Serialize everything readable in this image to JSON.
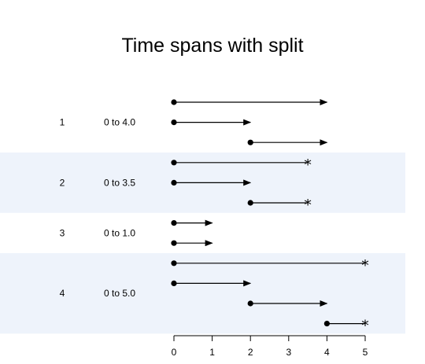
{
  "chart_data": {
    "type": "timeline",
    "title": "Time spans with split",
    "xlabel": "",
    "ylabel": "",
    "xlim": [
      0,
      5
    ],
    "x_ticks": [
      0,
      1,
      2,
      3,
      4,
      5
    ],
    "shade_color": "#eef3fb",
    "line_color": "#000000",
    "groups": [
      {
        "id": "1",
        "range": "0 to 4.0",
        "shaded": false,
        "segments": [
          {
            "start": 0,
            "end": 4,
            "end_marker": "arrow"
          },
          {
            "start": 0,
            "end": 2,
            "end_marker": "arrow"
          },
          {
            "start": 2,
            "end": 4,
            "end_marker": "arrow"
          }
        ]
      },
      {
        "id": "2",
        "range": "0 to 3.5",
        "shaded": true,
        "segments": [
          {
            "start": 0,
            "end": 3.5,
            "end_marker": "star"
          },
          {
            "start": 0,
            "end": 2,
            "end_marker": "arrow"
          },
          {
            "start": 2,
            "end": 3.5,
            "end_marker": "star"
          }
        ]
      },
      {
        "id": "3",
        "range": "0 to 1.0",
        "shaded": false,
        "segments": [
          {
            "start": 0,
            "end": 1,
            "end_marker": "arrow"
          },
          {
            "start": 0,
            "end": 1,
            "end_marker": "arrow"
          }
        ]
      },
      {
        "id": "4",
        "range": "0 to 5.0",
        "shaded": true,
        "segments": [
          {
            "start": 0,
            "end": 5,
            "end_marker": "star"
          },
          {
            "start": 0,
            "end": 2,
            "end_marker": "arrow"
          },
          {
            "start": 2,
            "end": 4,
            "end_marker": "arrow"
          },
          {
            "start": 4,
            "end": 5,
            "end_marker": "star"
          }
        ]
      }
    ]
  }
}
